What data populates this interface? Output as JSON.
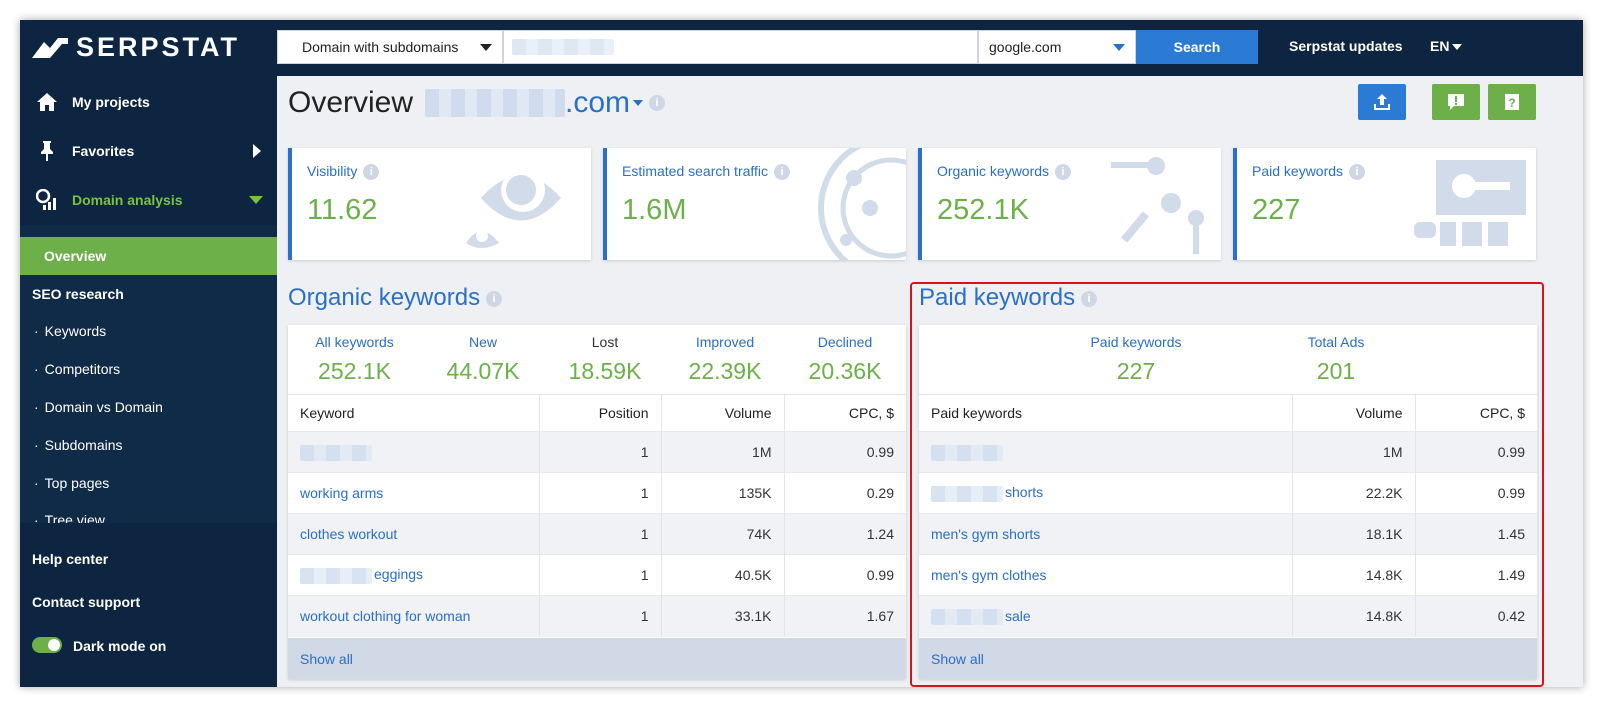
{
  "brand": {
    "name": "SERPSTAT"
  },
  "sidebar": {
    "items": [
      {
        "label": "My projects",
        "icon": "home-icon"
      },
      {
        "label": "Favorites",
        "icon": "pin-icon"
      },
      {
        "label": "Domain analysis",
        "icon": "analytics-icon"
      }
    ],
    "sub": {
      "overview": "Overview",
      "heading": "SEO research",
      "links": [
        "Keywords",
        "Competitors",
        "Domain vs Domain",
        "Subdomains",
        "Top pages",
        "Tree view"
      ]
    },
    "bottom": {
      "help": "Help center",
      "contact": "Contact support",
      "dark_mode": "Dark mode on"
    }
  },
  "topbar": {
    "search_type": "Domain with subdomains",
    "search_value": "",
    "engine": "google.com",
    "search_button": "Search",
    "updates": "Serpstat updates",
    "language": "EN"
  },
  "page": {
    "title": "Overview",
    "domain_suffix": ".com"
  },
  "cards": [
    {
      "label": "Visibility",
      "value": "11.62"
    },
    {
      "label": "Estimated search traffic",
      "value": "1.6M"
    },
    {
      "label": "Organic keywords",
      "value": "252.1K"
    },
    {
      "label": "Paid keywords",
      "value": "227"
    }
  ],
  "organic": {
    "title": "Organic keywords",
    "stats": [
      {
        "label": "All keywords",
        "value": "252.1K"
      },
      {
        "label": "New",
        "value": "44.07K"
      },
      {
        "label": "Lost",
        "value": "18.59K"
      },
      {
        "label": "Improved",
        "value": "22.39K"
      },
      {
        "label": "Declined",
        "value": "20.36K"
      }
    ],
    "columns": [
      "Keyword",
      "Position",
      "Volume",
      "CPC, $"
    ],
    "rows": [
      {
        "keyword": "",
        "position": "1",
        "volume": "1M",
        "cpc": "0.99"
      },
      {
        "keyword": "working arms",
        "position": "1",
        "volume": "135K",
        "cpc": "0.29"
      },
      {
        "keyword": "clothes workout",
        "position": "1",
        "volume": "74K",
        "cpc": "1.24"
      },
      {
        "keyword": "eggings",
        "position": "1",
        "volume": "40.5K",
        "cpc": "0.99"
      },
      {
        "keyword": "workout clothing for woman",
        "position": "1",
        "volume": "33.1K",
        "cpc": "1.67"
      }
    ],
    "show_all": "Show all"
  },
  "paid": {
    "title": "Paid keywords",
    "stats": [
      {
        "label": "Paid keywords",
        "value": "227"
      },
      {
        "label": "Total Ads",
        "value": "201"
      }
    ],
    "columns": [
      "Paid keywords",
      "Volume",
      "CPC, $"
    ],
    "rows": [
      {
        "keyword": "",
        "volume": "1M",
        "cpc": "0.99"
      },
      {
        "keyword": "shorts",
        "volume": "22.2K",
        "cpc": "0.99"
      },
      {
        "keyword": "men's gym shorts",
        "volume": "18.1K",
        "cpc": "1.45"
      },
      {
        "keyword": "men's gym clothes",
        "volume": "14.8K",
        "cpc": "1.49"
      },
      {
        "keyword": "sale",
        "volume": "14.8K",
        "cpc": "0.42"
      }
    ],
    "show_all": "Show all"
  },
  "colors": {
    "navy": "#0d2540",
    "blue": "#2a6fc9",
    "green": "#6db04a",
    "highlight": "#d3151d"
  }
}
